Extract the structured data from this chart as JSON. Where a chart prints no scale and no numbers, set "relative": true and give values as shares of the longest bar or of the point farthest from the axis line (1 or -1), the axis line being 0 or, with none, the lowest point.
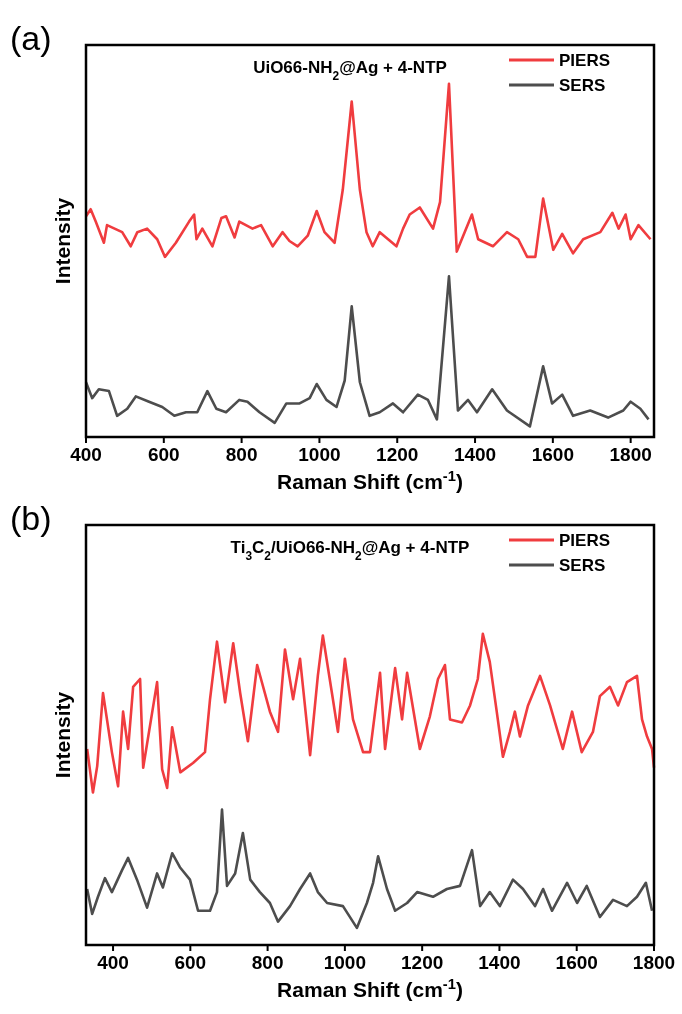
{
  "chart_data": [
    {
      "type": "line",
      "title": "UiO66-NH$_{2}$@Ag + 4-NTP",
      "xlabel": "Raman Shift (cm$^{-1}$)",
      "ylabel": "Intensity",
      "annotations": [
        "(a)"
      ],
      "relative": true,
      "xlim": [
        400,
        1860
      ],
      "xticks": [
        400,
        600,
        800,
        1000,
        1200,
        1400,
        1600,
        1800
      ],
      "tick_labels": "x",
      "grid": false,
      "legend": "top right",
      "marker": "none",
      "line_style": "solid",
      "series": [
        {
          "name": "PIERS",
          "color": "#f03c3f",
          "x": [
            400,
            412,
            425,
            446,
            454,
            493,
            515,
            532,
            557,
            583,
            603,
            631,
            665,
            678,
            684,
            699,
            725,
            748,
            760,
            782,
            794,
            828,
            850,
            880,
            905,
            923,
            944,
            970,
            993,
            1013,
            1039,
            1060,
            1083,
            1104,
            1121,
            1137,
            1155,
            1198,
            1215,
            1232,
            1258,
            1292,
            1310,
            1333,
            1353,
            1392,
            1408,
            1446,
            1482,
            1511,
            1534,
            1555,
            1575,
            1601,
            1624,
            1652,
            1678,
            1722,
            1753,
            1769,
            1787,
            1800,
            1820,
            1851
          ],
          "values": [
            0.625,
            0.645,
            0.61,
            0.55,
            0.6,
            0.58,
            0.54,
            0.58,
            0.59,
            0.56,
            0.51,
            0.55,
            0.61,
            0.63,
            0.56,
            0.59,
            0.54,
            0.62,
            0.625,
            0.565,
            0.61,
            0.59,
            0.6,
            0.54,
            0.58,
            0.555,
            0.54,
            0.57,
            0.64,
            0.58,
            0.55,
            0.7,
            0.95,
            0.7,
            0.58,
            0.54,
            0.58,
            0.54,
            0.59,
            0.63,
            0.65,
            0.59,
            0.665,
            1.0,
            0.525,
            0.63,
            0.56,
            0.54,
            0.58,
            0.56,
            0.51,
            0.51,
            0.675,
            0.53,
            0.575,
            0.52,
            0.56,
            0.58,
            0.635,
            0.59,
            0.63,
            0.56,
            0.6,
            0.56
          ]
        },
        {
          "name": "SERS",
          "color": "#4d4d4d",
          "x": [
            400,
            416,
            433,
            459,
            480,
            506,
            528,
            562,
            596,
            627,
            657,
            686,
            712,
            735,
            760,
            794,
            815,
            846,
            885,
            915,
            949,
            975,
            993,
            1018,
            1044,
            1065,
            1083,
            1104,
            1129,
            1155,
            1189,
            1215,
            1253,
            1279,
            1302,
            1333,
            1356,
            1382,
            1405,
            1444,
            1482,
            1541,
            1575,
            1598,
            1624,
            1652,
            1696,
            1742,
            1781,
            1800,
            1825,
            1846
          ],
          "values": [
            0.155,
            0.11,
            0.135,
            0.13,
            0.06,
            0.08,
            0.115,
            0.1,
            0.085,
            0.06,
            0.07,
            0.07,
            0.13,
            0.08,
            0.07,
            0.105,
            0.1,
            0.07,
            0.04,
            0.095,
            0.095,
            0.11,
            0.15,
            0.105,
            0.085,
            0.16,
            0.37,
            0.155,
            0.06,
            0.07,
            0.095,
            0.07,
            0.12,
            0.105,
            0.05,
            0.455,
            0.075,
            0.105,
            0.07,
            0.135,
            0.075,
            0.03,
            0.2,
            0.095,
            0.12,
            0.06,
            0.075,
            0.055,
            0.075,
            0.1,
            0.08,
            0.05
          ]
        }
      ]
    },
    {
      "type": "line",
      "title": "Ti$_{3}$C$_{2}$/UiO66-NH$_{2}$@Ag + 4-NTP",
      "xlabel": "Raman Shift (cm$^{-1}$)",
      "ylabel": "Intensity",
      "annotations": [
        "(b)"
      ],
      "relative": true,
      "xlim": [
        330,
        1800
      ],
      "xticks": [
        400,
        600,
        800,
        1000,
        1200,
        1400,
        1600,
        1800
      ],
      "tick_labels": "x",
      "grid": false,
      "legend": "top right",
      "marker": "none",
      "line_style": "solid",
      "series": [
        {
          "name": "PIERS",
          "color": "#f03c3f",
          "x": [
            333,
            348,
            359,
            374,
            397,
            413,
            426,
            439,
            452,
            470,
            478,
            514,
            527,
            540,
            553,
            574,
            607,
            638,
            651,
            669,
            690,
            711,
            729,
            749,
            773,
            806,
            827,
            845,
            866,
            884,
            910,
            930,
            943,
            969,
            982,
            1000,
            1021,
            1047,
            1065,
            1091,
            1104,
            1130,
            1148,
            1161,
            1194,
            1220,
            1241,
            1259,
            1272,
            1303,
            1324,
            1344,
            1357,
            1375,
            1393,
            1409,
            1427,
            1440,
            1453,
            1474,
            1505,
            1531,
            1564,
            1588,
            1613,
            1642,
            1660,
            1686,
            1707,
            1730,
            1756,
            1769,
            1782,
            1795,
            1800
          ],
          "values": [
            0.63,
            0.49,
            0.575,
            0.81,
            0.62,
            0.51,
            0.75,
            0.63,
            0.83,
            0.855,
            0.57,
            0.845,
            0.565,
            0.505,
            0.7,
            0.555,
            0.585,
            0.62,
            0.79,
            0.975,
            0.78,
            0.97,
            0.81,
            0.655,
            0.9,
            0.75,
            0.685,
            0.95,
            0.79,
            0.92,
            0.61,
            0.865,
            0.995,
            0.79,
            0.685,
            0.92,
            0.725,
            0.62,
            0.62,
            0.875,
            0.63,
            0.89,
            0.725,
            0.875,
            0.63,
            0.735,
            0.855,
            0.9,
            0.725,
            0.715,
            0.77,
            0.855,
            1.0,
            0.91,
            0.75,
            0.605,
            0.685,
            0.75,
            0.67,
            0.77,
            0.865,
            0.77,
            0.63,
            0.75,
            0.62,
            0.685,
            0.8,
            0.83,
            0.77,
            0.845,
            0.865,
            0.725,
            0.67,
            0.63,
            0.57
          ]
        },
        {
          "name": "SERS",
          "color": "#4d4d4d",
          "x": [
            333,
            346,
            361,
            379,
            397,
            423,
            439,
            462,
            488,
            514,
            529,
            553,
            573,
            599,
            620,
            651,
            669,
            682,
            695,
            716,
            736,
            755,
            780,
            806,
            827,
            858,
            884,
            910,
            930,
            954,
            995,
            1031,
            1057,
            1073,
            1086,
            1109,
            1130,
            1161,
            1187,
            1228,
            1264,
            1298,
            1329,
            1350,
            1375,
            1401,
            1435,
            1461,
            1492,
            1513,
            1536,
            1575,
            1601,
            1626,
            1660,
            1694,
            1730,
            1756,
            1779,
            1795
          ],
          "values": [
            0.18,
            0.1,
            0.155,
            0.215,
            0.17,
            0.24,
            0.28,
            0.21,
            0.12,
            0.23,
            0.185,
            0.295,
            0.25,
            0.21,
            0.11,
            0.11,
            0.17,
            0.435,
            0.19,
            0.23,
            0.36,
            0.21,
            0.17,
            0.135,
            0.075,
            0.125,
            0.18,
            0.23,
            0.17,
            0.135,
            0.125,
            0.055,
            0.135,
            0.2,
            0.285,
            0.18,
            0.11,
            0.135,
            0.17,
            0.155,
            0.18,
            0.19,
            0.305,
            0.125,
            0.17,
            0.125,
            0.21,
            0.18,
            0.125,
            0.18,
            0.11,
            0.2,
            0.135,
            0.19,
            0.09,
            0.145,
            0.125,
            0.155,
            0.2,
            0.11
          ]
        }
      ]
    }
  ]
}
